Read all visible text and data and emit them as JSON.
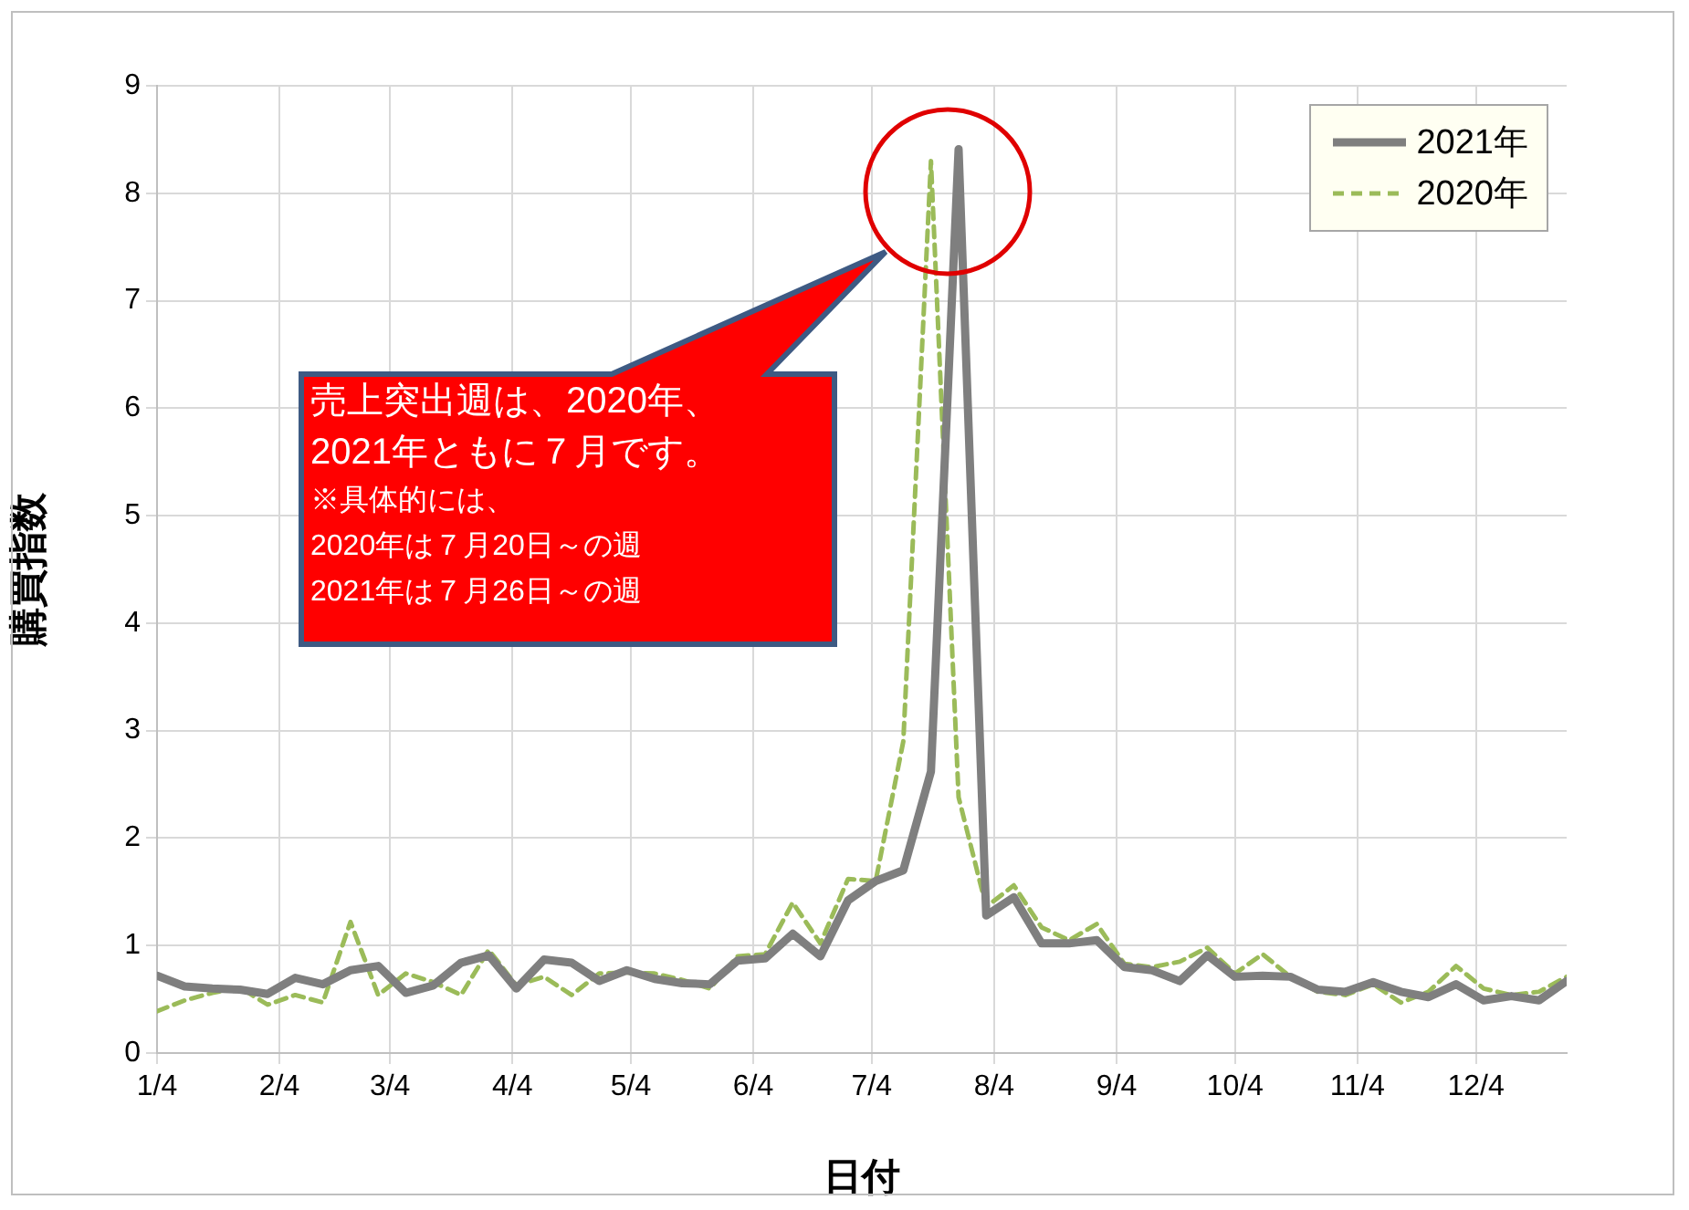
{
  "chart_data": {
    "type": "line",
    "xlabel": "日付",
    "ylabel": "購買指数",
    "annotations": [
      "売上突出週は、2020年、",
      "2021年ともに７月です。",
      "※具体的には、",
      "2020年は７月20日～の週",
      "2021年は７月26日～の週"
    ],
    "x": [
      "2021-01-04",
      "2021-01-11",
      "2021-01-18",
      "2021-01-25",
      "2021-02-01",
      "2021-02-08",
      "2021-02-15",
      "2021-02-22",
      "2021-03-01",
      "2021-03-08",
      "2021-03-15",
      "2021-03-22",
      "2021-03-29",
      "2021-04-05",
      "2021-04-12",
      "2021-04-19",
      "2021-04-26",
      "2021-05-03",
      "2021-05-10",
      "2021-05-17",
      "2021-05-24",
      "2021-05-31",
      "2021-06-07",
      "2021-06-14",
      "2021-06-21",
      "2021-06-28",
      "2021-07-05",
      "2021-07-12",
      "2021-07-19",
      "2021-07-26",
      "2021-08-02",
      "2021-08-09",
      "2021-08-16",
      "2021-08-23",
      "2021-08-30",
      "2021-09-06",
      "2021-09-13",
      "2021-09-20",
      "2021-09-27",
      "2021-10-04",
      "2021-10-11",
      "2021-10-18",
      "2021-10-25",
      "2021-11-01",
      "2021-11-08",
      "2021-11-15",
      "2021-11-22",
      "2021-11-29",
      "2021-12-06",
      "2021-12-13",
      "2021-12-20",
      "2021-12-27"
    ],
    "series": [
      {
        "name": "2021年",
        "color": "#7f7f7f",
        "line_style": "solid",
        "values": [
          0.72,
          0.62,
          0.6,
          0.59,
          0.55,
          0.7,
          0.64,
          0.77,
          0.81,
          0.56,
          0.63,
          0.84,
          0.91,
          0.6,
          0.87,
          0.84,
          0.67,
          0.77,
          0.69,
          0.65,
          0.64,
          0.86,
          0.88,
          1.11,
          0.9,
          1.42,
          1.6,
          1.7,
          2.62,
          8.41,
          1.28,
          1.45,
          1.02,
          1.02,
          1.05,
          0.8,
          0.77,
          0.67,
          0.91,
          0.71,
          0.72,
          0.71,
          0.59,
          0.57,
          0.66,
          0.57,
          0.52,
          0.64,
          0.49,
          0.53,
          0.49,
          0.67
        ]
      },
      {
        "name": "2020年",
        "color": "#9bbb59",
        "line_style": "dashed",
        "values": [
          0.39,
          0.49,
          0.56,
          0.61,
          0.45,
          0.54,
          0.47,
          1.22,
          0.54,
          0.74,
          0.66,
          0.54,
          0.96,
          0.63,
          0.71,
          0.54,
          0.74,
          0.75,
          0.74,
          0.68,
          0.6,
          0.9,
          0.92,
          1.4,
          1.02,
          1.62,
          1.6,
          2.9,
          8.3,
          2.38,
          1.36,
          1.56,
          1.17,
          1.05,
          1.2,
          0.83,
          0.8,
          0.85,
          0.98,
          0.74,
          0.92,
          0.71,
          0.57,
          0.54,
          0.64,
          0.47,
          0.57,
          0.81,
          0.6,
          0.54,
          0.57,
          0.71
        ]
      }
    ],
    "xlim": [
      "2021-01-04",
      "2021-12-27"
    ],
    "xticks": [
      {
        "value": "2021-01-04",
        "label": "1/4"
      },
      {
        "value": "2021-02-04",
        "label": "2/4"
      },
      {
        "value": "2021-03-04",
        "label": "3/4"
      },
      {
        "value": "2021-04-04",
        "label": "4/4"
      },
      {
        "value": "2021-05-04",
        "label": "5/4"
      },
      {
        "value": "2021-06-04",
        "label": "6/4"
      },
      {
        "value": "2021-07-04",
        "label": "7/4"
      },
      {
        "value": "2021-08-04",
        "label": "8/4"
      },
      {
        "value": "2021-09-04",
        "label": "9/4"
      },
      {
        "value": "2021-10-04",
        "label": "10/4"
      },
      {
        "value": "2021-11-04",
        "label": "11/4"
      },
      {
        "value": "2021-12-04",
        "label": "12/4"
      }
    ],
    "ylim": [
      0,
      9
    ],
    "yticks": [
      0,
      1,
      2,
      3,
      4,
      5,
      6,
      7,
      8,
      9
    ],
    "grid": true,
    "legend": "top right",
    "marker": "none"
  }
}
